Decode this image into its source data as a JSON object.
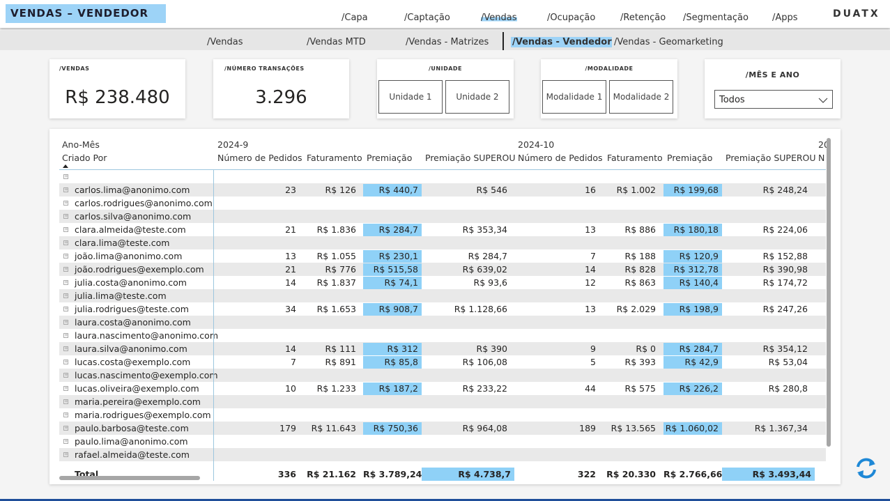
{
  "header": {
    "title": "VENDAS – VENDEDOR",
    "logo": "DUATX",
    "nav": [
      "/Capa",
      "/Captação",
      "/Vendas",
      "/Ocupação",
      "/Retenção",
      "/Segmentação",
      "/Apps"
    ],
    "nav_active": 2,
    "subnav": [
      "/Vendas",
      "/Vendas MTD",
      "/Vendas - Matrizes",
      "/Vendas - Vendedor",
      "/Vendas - Geomarketing"
    ],
    "subnav_active": 3
  },
  "cards": {
    "vendas": {
      "label": "/VENDAS",
      "value": "R$ 238.480"
    },
    "transacoes": {
      "label": "/NÚMERO TRANSAÇÕES",
      "value": "3.296"
    },
    "unidade": {
      "label": "/UNIDADE",
      "options": [
        "Unidade 1",
        "Unidade 2"
      ]
    },
    "modalidade": {
      "label": "/MODALIDADE",
      "options": [
        "Modalidade 1",
        "Modalidade 2"
      ]
    },
    "mes_ano": {
      "label": "/MÊS E ANO",
      "selected": "Todos"
    }
  },
  "table": {
    "row_header": [
      "Ano-Mês",
      "Criado Por"
    ],
    "groups": [
      "2024-9",
      "2024-10",
      "20"
    ],
    "columns": [
      "Número de Pedidos",
      "Faturamento",
      "Premiação",
      "Premiação SUPEROU"
    ],
    "clipped_column": "N",
    "rows": [
      [
        null,
        null,
        null,
        null,
        null,
        null,
        null,
        null,
        null
      ],
      [
        "carlos.lima@anonimo.com",
        23,
        "R$ 126",
        "R$ 440,7",
        "R$ 546",
        16,
        "R$ 1.002",
        "R$ 199,68",
        "R$ 248,24"
      ],
      [
        "carlos.rodrigues@anonimo.com",
        null,
        null,
        null,
        null,
        null,
        null,
        null,
        null
      ],
      [
        "carlos.silva@anonimo.com",
        null,
        null,
        null,
        null,
        null,
        null,
        null,
        null
      ],
      [
        "clara.almeida@teste.com",
        21,
        "R$ 1.836",
        "R$ 284,7",
        "R$ 353,34",
        13,
        "R$ 886",
        "R$ 180,18",
        "R$ 224,06"
      ],
      [
        "clara.lima@teste.com",
        null,
        null,
        null,
        null,
        null,
        null,
        null,
        null
      ],
      [
        "joão.lima@anonimo.com",
        13,
        "R$ 1.055",
        "R$ 230,1",
        "R$ 284,7",
        7,
        "R$ 188",
        "R$ 120,9",
        "R$ 152,88"
      ],
      [
        "joão.rodrigues@exemplo.com",
        21,
        "R$ 776",
        "R$ 515,58",
        "R$ 639,02",
        14,
        "R$ 828",
        "R$ 312,78",
        "R$ 390,98"
      ],
      [
        "julia.costa@anonimo.com",
        14,
        "R$ 1.837",
        "R$ 74,1",
        "R$ 93,6",
        12,
        "R$ 863",
        "R$ 140,4",
        "R$ 174,72"
      ],
      [
        "julia.lima@teste.com",
        null,
        null,
        null,
        null,
        null,
        null,
        null,
        null
      ],
      [
        "julia.rodrigues@teste.com",
        34,
        "R$ 1.653",
        "R$ 908,7",
        "R$ 1.128,66",
        13,
        "R$ 2.029",
        "R$ 198,9",
        "R$ 247,26"
      ],
      [
        "laura.costa@anonimo.com",
        null,
        null,
        null,
        null,
        null,
        null,
        null,
        null
      ],
      [
        "laura.nascimento@anonimo.com",
        null,
        null,
        null,
        null,
        null,
        null,
        null,
        null
      ],
      [
        "laura.silva@anonimo.com",
        14,
        "R$ 111",
        "R$ 312",
        "R$ 390",
        9,
        "R$ 0",
        "R$ 284,7",
        "R$ 354,12"
      ],
      [
        "lucas.costa@exemplo.com",
        7,
        "R$ 891",
        "R$ 85,8",
        "R$ 106,08",
        5,
        "R$ 393",
        "R$ 42,9",
        "R$ 53,04"
      ],
      [
        "lucas.nascimento@exemplo.com",
        null,
        null,
        null,
        null,
        null,
        null,
        null,
        null
      ],
      [
        "lucas.oliveira@exemplo.com",
        10,
        "R$ 1.233",
        "R$ 187,2",
        "R$ 233,22",
        44,
        "R$ 575",
        "R$ 226,2",
        "R$ 280,8"
      ],
      [
        "maria.pereira@exemplo.com",
        null,
        null,
        null,
        null,
        null,
        null,
        null,
        null
      ],
      [
        "maria.rodrigues@exemplo.com",
        null,
        null,
        null,
        null,
        null,
        null,
        null,
        null
      ],
      [
        "paulo.barbosa@teste.com",
        179,
        "R$ 11.643",
        "R$ 750,36",
        "R$ 964,08",
        189,
        "R$ 13.565",
        "R$ 1.060,02",
        "R$ 1.367,34"
      ],
      [
        "paulo.lima@anonimo.com",
        null,
        null,
        null,
        null,
        null,
        null,
        null,
        null
      ],
      [
        "rafael.almeida@teste.com",
        null,
        null,
        null,
        null,
        null,
        null,
        null,
        null
      ]
    ],
    "total": [
      "Total",
      336,
      "R$ 21.162",
      "R$ 3.789,24",
      "R$ 4.738,7",
      322,
      "R$ 20.330",
      "R$ 2.766,66",
      "R$ 3.493,44"
    ]
  }
}
